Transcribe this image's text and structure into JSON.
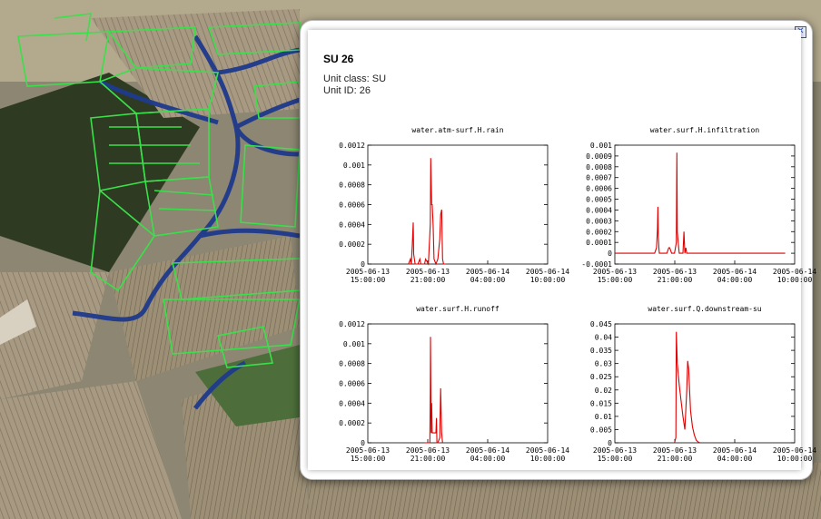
{
  "popup": {
    "title": "SU 26",
    "unit_class": "Unit class: SU",
    "unit_id": "Unit ID: 26",
    "close_icon": "close-icon"
  },
  "chart_data": [
    {
      "type": "line",
      "title": "water.atm-surf.H.rain",
      "ylim": [
        0,
        0.0012
      ],
      "yticks": [
        "0",
        "0.0002",
        "0.0004",
        "0.0006",
        "0.0008",
        "0.001",
        "0.0012"
      ],
      "ytick_values": [
        0,
        0.0002,
        0.0004,
        0.0006,
        0.0008,
        0.001,
        0.0012
      ],
      "xticks": [
        [
          "2005-06-13",
          "15:00:00"
        ],
        [
          "2005-06-13",
          "21:00:00"
        ],
        [
          "2005-06-14",
          "04:00:00"
        ],
        [
          "2005-06-14",
          "10:00:00"
        ]
      ],
      "xlim": [
        0,
        19
      ],
      "series": [
        {
          "color": "#e00000",
          "x": [
            4.3,
            4.5,
            4.6,
            4.7,
            4.8,
            4.85,
            5.0,
            5.3,
            5.5,
            5.6,
            6.0,
            6.1,
            6.4,
            6.6,
            6.65,
            6.75,
            6.8,
            6.9,
            7.0,
            7.2,
            7.4,
            7.6,
            7.7,
            7.8,
            7.85,
            7.9,
            8.0,
            8.2
          ],
          "y": [
            0,
            5e-05,
            0,
            0.0002,
            0.00042,
            0.0001,
            0,
            0,
            5e-05,
            0,
            0,
            5e-05,
            0,
            0.0004,
            0.00107,
            0.0006,
            0.0006,
            0.0004,
            5e-05,
            0,
            5e-05,
            0.00025,
            0.0005,
            0.00055,
            0.0003,
            5e-05,
            0,
            0
          ]
        }
      ]
    },
    {
      "type": "line",
      "title": "water.surf.H.infiltration",
      "ylim": [
        -0.0001,
        0.001
      ],
      "yticks": [
        "-0.0001",
        "0",
        "0.0001",
        "0.0002",
        "0.0003",
        "0.0004",
        "0.0005",
        "0.0006",
        "0.0007",
        "0.0008",
        "0.0009",
        "0.001"
      ],
      "ytick_values": [
        -0.0001,
        0,
        0.0001,
        0.0002,
        0.0003,
        0.0004,
        0.0005,
        0.0006,
        0.0007,
        0.0008,
        0.0009,
        0.001
      ],
      "xticks": [
        [
          "2005-06-13",
          "15:00:00"
        ],
        [
          "2005-06-13",
          "21:00:00"
        ],
        [
          "2005-06-14",
          "04:00:00"
        ],
        [
          "2005-06-14",
          "10:00:00"
        ]
      ],
      "xlim": [
        0,
        19
      ],
      "series": [
        {
          "color": "#e00000",
          "x": [
            0,
            4.2,
            4.4,
            4.5,
            4.55,
            4.6,
            4.65,
            4.7,
            4.8,
            5.0,
            5.5,
            5.7,
            5.8,
            6.0,
            6.3,
            6.5,
            6.55,
            6.6,
            6.7,
            6.8,
            7.2,
            7.3,
            7.4,
            7.5,
            7.6,
            8.0,
            18.0
          ],
          "y": [
            0,
            0,
            5e-05,
            0.00022,
            0.00043,
            0.00015,
            5e-05,
            0,
            0,
            0,
            0,
            5e-05,
            5e-05,
            0,
            0,
            0.0001,
            0.00093,
            0.0002,
            0.0001,
            0,
            0,
            0.0002,
            0,
            5e-05,
            0,
            0,
            0
          ]
        }
      ]
    },
    {
      "type": "line",
      "title": "water.surf.H.runoff",
      "ylim": [
        0,
        0.0012
      ],
      "yticks": [
        "0",
        "0.0002",
        "0.0004",
        "0.0006",
        "0.0008",
        "0.001",
        "0.0012"
      ],
      "ytick_values": [
        0,
        0.0002,
        0.0004,
        0.0006,
        0.0008,
        0.001,
        0.0012
      ],
      "xticks": [
        [
          "2005-06-13",
          "15:00:00"
        ],
        [
          "2005-06-13",
          "21:00:00"
        ],
        [
          "2005-06-14",
          "04:00:00"
        ],
        [
          "2005-06-14",
          "10:00:00"
        ]
      ],
      "xlim": [
        0,
        19
      ],
      "series": [
        {
          "color": "#e00000",
          "x": [
            6.0,
            6.55,
            6.6,
            6.62,
            6.7,
            6.75,
            6.8,
            6.9,
            7.0,
            7.2,
            7.25,
            7.3,
            7.4,
            7.6,
            7.7,
            7.75,
            7.8,
            7.9
          ],
          "y": [
            0,
            0,
            0.0005,
            0.00107,
            0.0001,
            0.0004,
            0.0001,
            0.0001,
            0.0001,
            0.0001,
            0.00025,
            0,
            0,
            5e-05,
            0.00055,
            0.0003,
            0.0001,
            0
          ]
        }
      ]
    },
    {
      "type": "line",
      "title": "water.surf.Q.downstream-su",
      "ylim": [
        0,
        0.045
      ],
      "yticks": [
        "0",
        "0.005",
        "0.01",
        "0.015",
        "0.02",
        "0.025",
        "0.03",
        "0.035",
        "0.04",
        "0.045"
      ],
      "ytick_values": [
        0,
        0.005,
        0.01,
        0.015,
        0.02,
        0.025,
        0.03,
        0.035,
        0.04,
        0.045
      ],
      "xticks": [
        [
          "2005-06-13",
          "15:00:00"
        ],
        [
          "2005-06-13",
          "21:00:00"
        ],
        [
          "2005-06-14",
          "04:00:00"
        ],
        [
          "2005-06-14",
          "10:00:00"
        ]
      ],
      "xlim": [
        0,
        19
      ],
      "series": [
        {
          "color": "#e00000",
          "x": [
            6.3,
            6.45,
            6.5,
            6.6,
            6.8,
            7.0,
            7.2,
            7.4,
            7.6,
            7.7,
            7.8,
            7.9,
            8.0,
            8.2,
            8.4,
            8.6,
            8.8,
            9.0
          ],
          "y": [
            0,
            0.002,
            0.042,
            0.03,
            0.022,
            0.016,
            0.01,
            0.005,
            0.02,
            0.031,
            0.028,
            0.02,
            0.012,
            0.006,
            0.003,
            0.001,
            0.0003,
            0
          ]
        }
      ]
    }
  ]
}
